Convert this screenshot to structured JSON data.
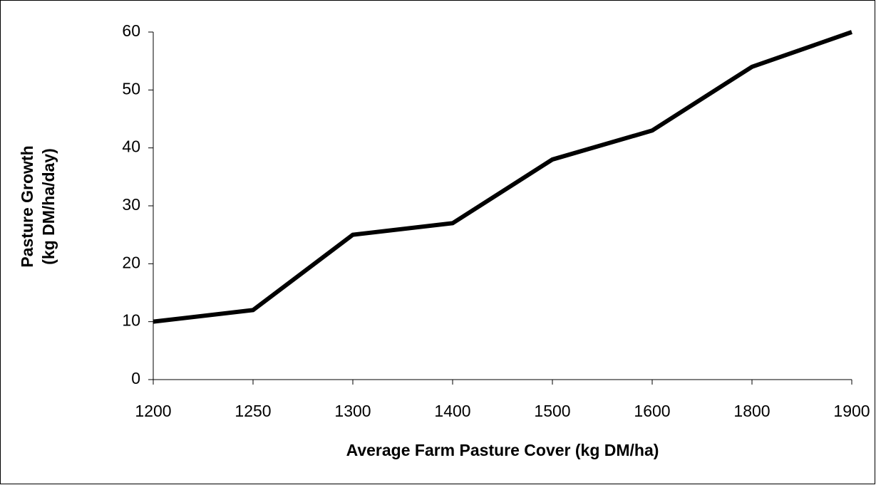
{
  "chart_data": {
    "type": "line",
    "xlabel": "Average Farm Pasture Cover (kg DM/ha)",
    "ylabel": [
      "Pasture Growth",
      "(kg DM/ha/day)"
    ],
    "categories": [
      "1200",
      "1250",
      "1300",
      "1400",
      "1500",
      "1600",
      "1800",
      "1900"
    ],
    "series": [
      {
        "color": "#000000",
        "values": [
          10,
          12,
          25,
          27,
          38,
          43,
          54,
          60
        ]
      }
    ],
    "ylim": [
      0,
      60
    ],
    "yticks": [
      0,
      10,
      20,
      30,
      40,
      50,
      60
    ],
    "grid": false
  }
}
